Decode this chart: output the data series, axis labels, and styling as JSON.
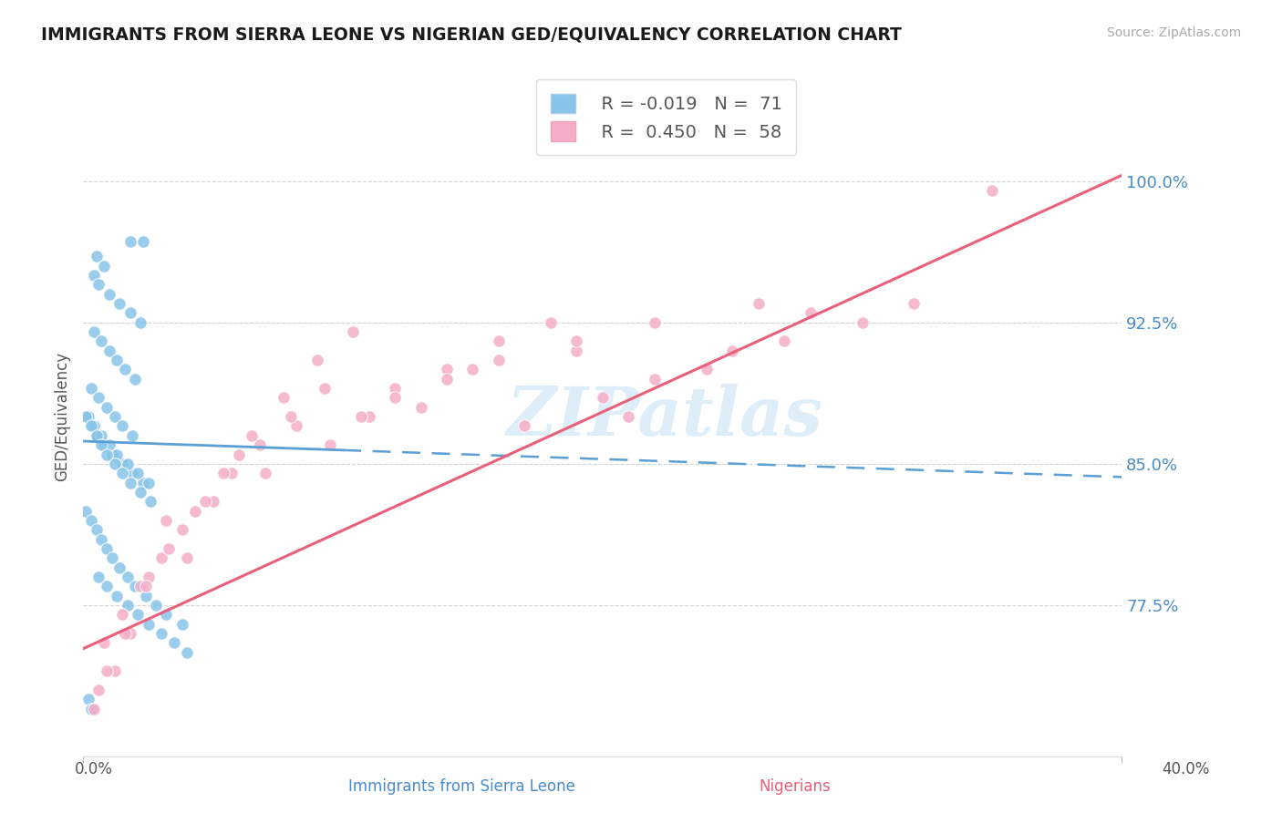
{
  "title": "IMMIGRANTS FROM SIERRA LEONE VS NIGERIAN GED/EQUIVALENCY CORRELATION CHART",
  "source": "Source: ZipAtlas.com",
  "ylabel": "GED/Equivalency",
  "ytick_vals": [
    0.775,
    0.85,
    0.925,
    1.0
  ],
  "ytick_labels": [
    "77.5%",
    "85.0%",
    "92.5%",
    "100.0%"
  ],
  "xmin": 0.0,
  "xmax": 0.4,
  "ymin": 0.695,
  "ymax": 1.055,
  "legend_r1": "R = -0.019",
  "legend_n1": "N =  71",
  "legend_r2": "R =  0.450",
  "legend_n2": "N =  58",
  "color_blue": "#88c4e8",
  "color_blue_line": "#5b9fd4",
  "color_pink": "#f4aec8",
  "color_pink_line": "#e8607a",
  "watermark": "ZIPatlas",
  "watermark_color": "#cce5f5",
  "tick_label_color": "#4a8cc9",
  "sl_x": [
    0.018,
    0.023,
    0.005,
    0.008,
    0.004,
    0.006,
    0.01,
    0.014,
    0.018,
    0.022,
    0.004,
    0.007,
    0.01,
    0.013,
    0.016,
    0.02,
    0.003,
    0.006,
    0.009,
    0.012,
    0.015,
    0.019,
    0.003,
    0.005,
    0.008,
    0.011,
    0.015,
    0.019,
    0.023,
    0.002,
    0.004,
    0.007,
    0.01,
    0.013,
    0.017,
    0.021,
    0.025,
    0.001,
    0.003,
    0.005,
    0.007,
    0.009,
    0.012,
    0.015,
    0.018,
    0.022,
    0.026,
    0.001,
    0.003,
    0.005,
    0.007,
    0.009,
    0.011,
    0.014,
    0.017,
    0.02,
    0.024,
    0.028,
    0.032,
    0.038,
    0.006,
    0.009,
    0.013,
    0.017,
    0.021,
    0.025,
    0.03,
    0.035,
    0.04,
    0.002,
    0.003
  ],
  "sl_y": [
    0.968,
    0.968,
    0.96,
    0.955,
    0.95,
    0.945,
    0.94,
    0.935,
    0.93,
    0.925,
    0.92,
    0.915,
    0.91,
    0.905,
    0.9,
    0.895,
    0.89,
    0.885,
    0.88,
    0.875,
    0.87,
    0.865,
    0.87,
    0.865,
    0.86,
    0.855,
    0.85,
    0.845,
    0.84,
    0.875,
    0.87,
    0.865,
    0.86,
    0.855,
    0.85,
    0.845,
    0.84,
    0.875,
    0.87,
    0.865,
    0.86,
    0.855,
    0.85,
    0.845,
    0.84,
    0.835,
    0.83,
    0.825,
    0.82,
    0.815,
    0.81,
    0.805,
    0.8,
    0.795,
    0.79,
    0.785,
    0.78,
    0.775,
    0.77,
    0.765,
    0.79,
    0.785,
    0.78,
    0.775,
    0.77,
    0.765,
    0.76,
    0.755,
    0.75,
    0.725,
    0.72
  ],
  "ng_x": [
    0.006,
    0.012,
    0.018,
    0.025,
    0.032,
    0.04,
    0.05,
    0.06,
    0.07,
    0.082,
    0.095,
    0.11,
    0.13,
    0.15,
    0.17,
    0.19,
    0.21,
    0.24,
    0.27,
    0.3,
    0.008,
    0.015,
    0.022,
    0.03,
    0.038,
    0.047,
    0.057,
    0.068,
    0.08,
    0.093,
    0.107,
    0.12,
    0.14,
    0.16,
    0.18,
    0.2,
    0.22,
    0.25,
    0.28,
    0.32,
    0.004,
    0.009,
    0.016,
    0.024,
    0.033,
    0.043,
    0.054,
    0.065,
    0.077,
    0.09,
    0.104,
    0.12,
    0.14,
    0.16,
    0.19,
    0.22,
    0.26,
    0.35
  ],
  "ng_y": [
    0.73,
    0.74,
    0.76,
    0.79,
    0.82,
    0.8,
    0.83,
    0.855,
    0.845,
    0.87,
    0.86,
    0.875,
    0.88,
    0.9,
    0.87,
    0.91,
    0.875,
    0.9,
    0.915,
    0.925,
    0.755,
    0.77,
    0.785,
    0.8,
    0.815,
    0.83,
    0.845,
    0.86,
    0.875,
    0.89,
    0.875,
    0.89,
    0.9,
    0.915,
    0.925,
    0.885,
    0.895,
    0.91,
    0.93,
    0.935,
    0.72,
    0.74,
    0.76,
    0.785,
    0.805,
    0.825,
    0.845,
    0.865,
    0.885,
    0.905,
    0.92,
    0.885,
    0.895,
    0.905,
    0.915,
    0.925,
    0.935,
    0.995
  ],
  "sl_trend_x0": 0.0,
  "sl_trend_x1": 0.4,
  "sl_trend_y0": 0.862,
  "sl_trend_y1": 0.843,
  "ng_trend_x0": 0.0,
  "ng_trend_x1": 0.4,
  "ng_trend_y0": 0.752,
  "ng_trend_y1": 1.003
}
